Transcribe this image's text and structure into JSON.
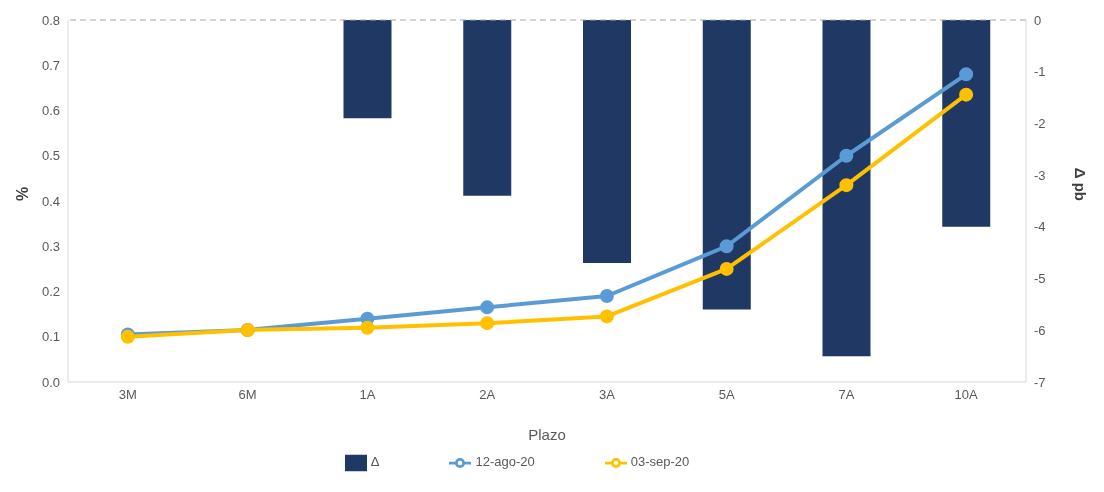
{
  "chart_data": {
    "type": "bar",
    "categories": [
      "3M",
      "6M",
      "1A",
      "2A",
      "3A",
      "5A",
      "7A",
      "10A"
    ],
    "xlabel": "Plazo",
    "ylabel": "%",
    "y2label": "Δ pb",
    "series": [
      {
        "name": "Δ",
        "axis": "y2",
        "color": "#1f3864",
        "values": [
          null,
          null,
          -1.9,
          -3.4,
          -4.7,
          -5.6,
          -6.5,
          -4.0
        ]
      },
      {
        "name": "12-ago-20",
        "type": "line",
        "color": "#5b9bd5",
        "values": [
          0.105,
          0.115,
          0.14,
          0.165,
          0.19,
          0.3,
          0.5,
          0.68
        ]
      },
      {
        "name": "03-sep-20",
        "type": "line",
        "color": "#ffc000",
        "values": [
          0.1,
          0.115,
          0.12,
          0.13,
          0.145,
          0.25,
          0.435,
          0.635
        ]
      }
    ],
    "ylim": [
      0,
      0.8
    ],
    "yticks": [
      {
        "value": 0,
        "label": "0.0"
      },
      0.1,
      0.2,
      0.3,
      0.4,
      0.5,
      0.6,
      0.7,
      0.8
    ],
    "y2lim": [
      -7,
      0
    ],
    "y2ticks": [
      -7,
      -6,
      -5,
      -4,
      -3,
      -2,
      -1,
      0
    ],
    "ref_lines": [
      {
        "axis": "y2",
        "value": 0,
        "color": "#a6a6a6",
        "line_style": "dashed"
      }
    ],
    "marker": "circle",
    "legend": "bottom",
    "grid": false
  }
}
